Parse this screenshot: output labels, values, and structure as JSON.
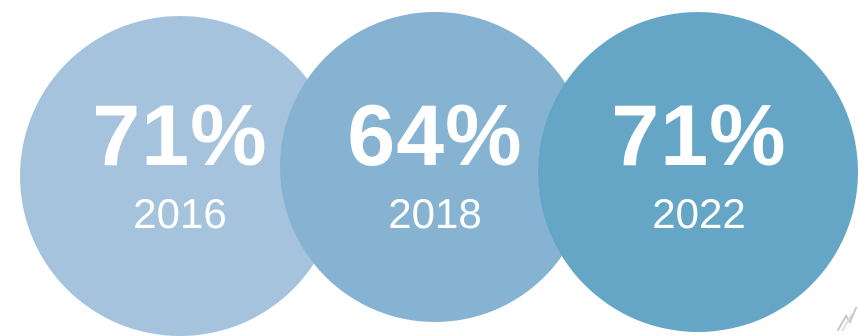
{
  "chart_data": {
    "type": "bubble",
    "categories": [
      "2016",
      "2018",
      "2022"
    ],
    "values": [
      71,
      64,
      71
    ],
    "value_labels": [
      "71%",
      "64%",
      "71%"
    ],
    "unit": "%",
    "colors": [
      "#a5c3dc",
      "#86b3d2",
      "#65a6c7"
    ]
  }
}
